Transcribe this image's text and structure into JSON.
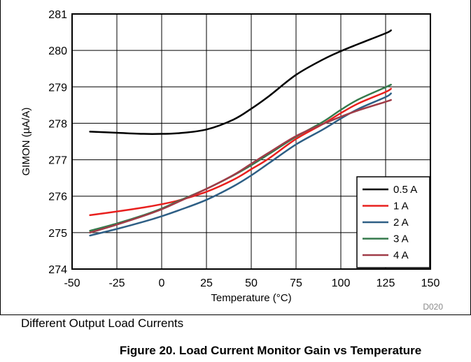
{
  "chart_data": {
    "type": "line",
    "xlabel": "Temperature (°C)",
    "ylabel": "GIMON (µA/A)",
    "xlim": [
      -50,
      150
    ],
    "ylim": [
      274,
      281
    ],
    "xticks": [
      "-50",
      "-25",
      "0",
      "25",
      "50",
      "75",
      "100",
      "125",
      "150"
    ],
    "yticks": [
      "274",
      "275",
      "276",
      "277",
      "278",
      "279",
      "280",
      "281"
    ],
    "grid": true,
    "legend_position": "bottom-right",
    "series": [
      {
        "name": "0.5 A",
        "color": "#000000",
        "x": [
          -40,
          -25,
          -10,
          0,
          10,
          25,
          40,
          50,
          60,
          75,
          90,
          100,
          110,
          125,
          128
        ],
        "y": [
          277.77,
          277.74,
          277.71,
          277.71,
          277.73,
          277.83,
          278.1,
          278.4,
          278.75,
          279.33,
          279.75,
          279.98,
          280.18,
          280.47,
          280.55
        ]
      },
      {
        "name": "1 A",
        "color": "#e8201e",
        "x": [
          -40,
          -25,
          -10,
          0,
          10,
          25,
          40,
          50,
          60,
          75,
          90,
          100,
          110,
          125,
          128
        ],
        "y": [
          275.48,
          275.58,
          275.69,
          275.78,
          275.89,
          276.12,
          276.45,
          276.74,
          277.04,
          277.57,
          277.98,
          278.28,
          278.55,
          278.86,
          278.95
        ]
      },
      {
        "name": "2 A",
        "color": "#2e5f85",
        "x": [
          -40,
          -25,
          -10,
          0,
          10,
          25,
          40,
          50,
          60,
          75,
          90,
          100,
          110,
          125,
          128
        ],
        "y": [
          274.92,
          275.1,
          275.3,
          275.45,
          275.62,
          275.9,
          276.27,
          276.57,
          276.91,
          277.42,
          277.83,
          278.13,
          278.4,
          278.72,
          278.82
        ]
      },
      {
        "name": "3 A",
        "color": "#357a4c",
        "x": [
          -40,
          -25,
          -10,
          0,
          10,
          25,
          40,
          50,
          60,
          75,
          90,
          100,
          110,
          125,
          128
        ],
        "y": [
          275.05,
          275.25,
          275.48,
          275.66,
          275.88,
          276.2,
          276.57,
          276.85,
          277.16,
          277.63,
          278.04,
          278.37,
          278.66,
          278.99,
          279.06
        ]
      },
      {
        "name": "4 A",
        "color": "#a03c48",
        "x": [
          -40,
          -25,
          -10,
          0,
          10,
          25,
          40,
          50,
          60,
          75,
          90,
          100,
          110,
          125,
          128
        ],
        "y": [
          275.0,
          275.22,
          275.46,
          275.64,
          275.86,
          276.2,
          276.58,
          276.89,
          277.2,
          277.65,
          277.98,
          278.18,
          278.36,
          278.59,
          278.64
        ]
      }
    ]
  },
  "code_label": "D020",
  "subtitle": "Different Output Load Currents",
  "caption": "Figure 20. Load Current Monitor Gain vs Temperature"
}
